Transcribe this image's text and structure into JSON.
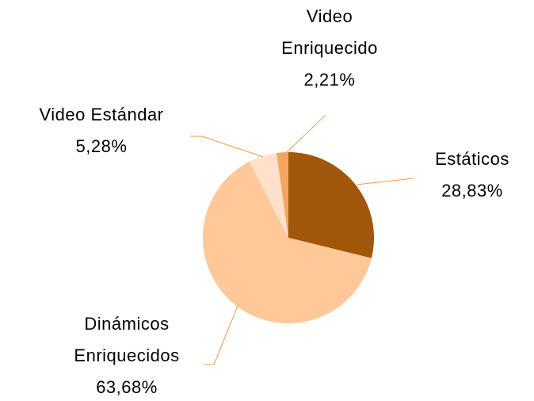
{
  "chart_data": {
    "type": "pie",
    "categories": [
      "Estáticos",
      "Dinámicos Enriquecidos",
      "Video Estándar",
      "Video Enriquecido"
    ],
    "values": [
      28.83,
      63.68,
      5.28,
      2.21
    ],
    "value_labels": [
      "28,83%",
      "63,68%",
      "5,28%",
      "2,21%"
    ],
    "colors": [
      "#a0570a",
      "#ffc898",
      "#ffe1cb",
      "#f7a460"
    ]
  }
}
